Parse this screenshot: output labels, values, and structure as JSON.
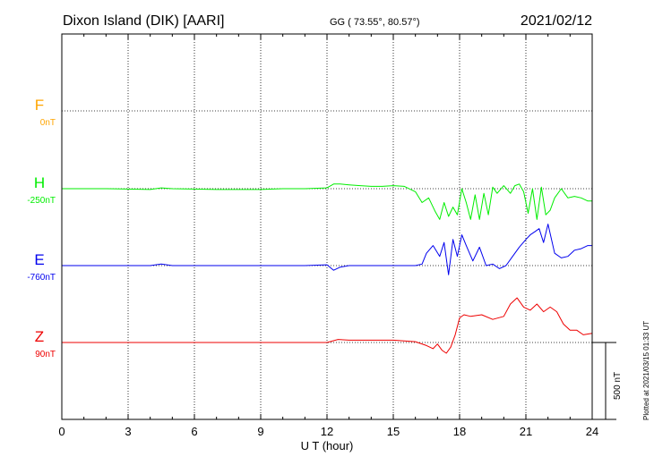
{
  "header": {
    "station": "Dixon Island (DIK)  [AARI]",
    "coords": "GG ( 73.55°,  80.57°)",
    "date": "2021/02/12"
  },
  "side_note": "Plotted at 2021/03/15 01:33 UT",
  "scale_bar_label": "500 nT",
  "chart_data": {
    "type": "line",
    "xlabel": "U T (hour)",
    "ylabel": "",
    "xlim": [
      0,
      24
    ],
    "x_ticks": [
      0,
      3,
      6,
      9,
      12,
      15,
      18,
      21,
      24
    ],
    "x_tick_labels": [
      "0",
      "3",
      "6",
      "9",
      "12",
      "15",
      "18",
      "21",
      "24"
    ],
    "scale_nT": 500,
    "grid": true,
    "series": [
      {
        "name": "F",
        "baseline_label": "0nT",
        "color": "#ffa500",
        "x": [],
        "y": []
      },
      {
        "name": "H",
        "baseline_label": "-250nT",
        "color": "#00ee00",
        "x": [
          0,
          2,
          4,
          4.5,
          5,
          7,
          9,
          10,
          11,
          12,
          12.3,
          12.6,
          13,
          13.5,
          14,
          14.5,
          15,
          15.5,
          16,
          16.3,
          16.6,
          16.9,
          17.1,
          17.3,
          17.5,
          17.7,
          17.9,
          18.1,
          18.3,
          18.5,
          18.7,
          18.9,
          19.1,
          19.3,
          19.5,
          19.7,
          20,
          20.3,
          20.5,
          20.7,
          20.9,
          21.1,
          21.3,
          21.5,
          21.7,
          21.9,
          22.1,
          22.3,
          22.6,
          22.9,
          23.2,
          23.5,
          23.8,
          24
        ],
        "y": [
          0,
          0,
          -5,
          5,
          0,
          -5,
          -5,
          0,
          0,
          5,
          30,
          30,
          25,
          20,
          15,
          15,
          20,
          15,
          -20,
          -90,
          -60,
          -150,
          -200,
          -90,
          -180,
          -120,
          -170,
          0,
          -90,
          -200,
          -40,
          -200,
          -30,
          -170,
          10,
          -30,
          20,
          -30,
          20,
          30,
          -20,
          -160,
          0,
          -200,
          10,
          -170,
          -140,
          -60,
          0,
          -60,
          -50,
          -60,
          -80,
          -80
        ]
      },
      {
        "name": "E",
        "baseline_label": "-760nT",
        "color": "#0000ee",
        "x": [
          0,
          2,
          4,
          4.5,
          5,
          7,
          9,
          10,
          11,
          12,
          12.3,
          12.6,
          13,
          14,
          15,
          15.5,
          16,
          16.3,
          16.5,
          16.8,
          17.1,
          17.3,
          17.5,
          17.7,
          17.9,
          18.1,
          18.3,
          18.6,
          18.9,
          19.2,
          19.5,
          19.8,
          20.1,
          20.4,
          20.7,
          21,
          21.2,
          21.4,
          21.6,
          21.8,
          22,
          22.3,
          22.6,
          22.9,
          23.2,
          23.5,
          23.8,
          24
        ],
        "y": [
          0,
          0,
          0,
          10,
          0,
          0,
          0,
          0,
          0,
          5,
          -30,
          -10,
          0,
          0,
          0,
          0,
          0,
          10,
          80,
          130,
          60,
          150,
          -60,
          170,
          60,
          200,
          130,
          30,
          120,
          0,
          10,
          -20,
          0,
          60,
          120,
          170,
          200,
          220,
          240,
          150,
          270,
          80,
          50,
          60,
          100,
          110,
          130,
          130
        ]
      },
      {
        "name": "Z",
        "baseline_label": "90nT",
        "color": "#ee0000",
        "x": [
          0,
          2,
          4,
          6,
          8,
          10,
          12,
          12.5,
          13,
          14,
          15,
          16,
          16.5,
          16.8,
          17,
          17.2,
          17.4,
          17.6,
          17.8,
          18,
          18.2,
          18.5,
          19,
          19.5,
          20,
          20.3,
          20.6,
          20.9,
          21.2,
          21.5,
          21.8,
          22.1,
          22.4,
          22.7,
          23,
          23.3,
          23.6,
          24
        ],
        "y": [
          0,
          0,
          0,
          0,
          0,
          0,
          0,
          20,
          15,
          15,
          15,
          5,
          -20,
          -40,
          -10,
          -50,
          -70,
          -30,
          50,
          160,
          180,
          170,
          180,
          150,
          170,
          250,
          290,
          230,
          210,
          250,
          200,
          230,
          200,
          120,
          80,
          80,
          50,
          60
        ]
      }
    ]
  }
}
